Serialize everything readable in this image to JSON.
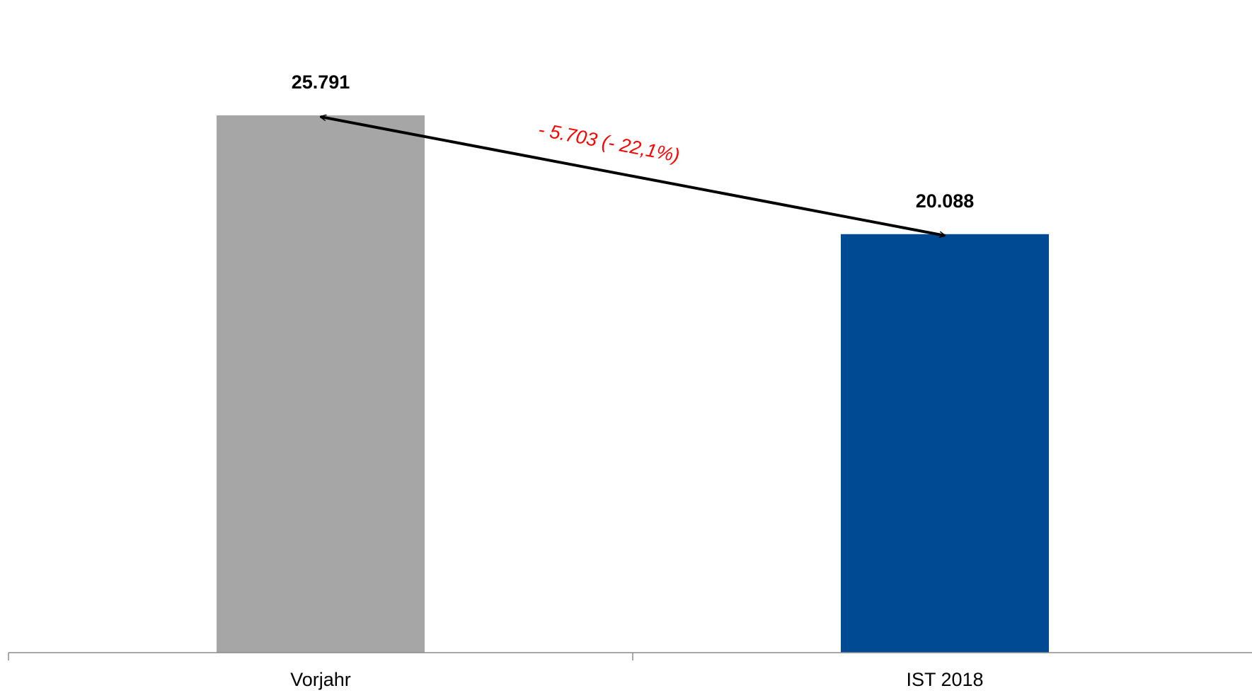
{
  "chart_data": {
    "type": "bar",
    "categories": [
      "Vorjahr",
      "IST 2018"
    ],
    "values": [
      25791,
      20088
    ],
    "value_labels": [
      "25.791",
      "20.088"
    ],
    "bar_colors": [
      "#a6a6a6",
      "#004a93"
    ],
    "ylim": [
      0,
      29000
    ],
    "grid": false,
    "annotation": {
      "text": "- 5.703 (- 22,1%)",
      "color": "#ff0000",
      "from_category": "Vorjahr",
      "to_category": "IST 2018"
    }
  }
}
